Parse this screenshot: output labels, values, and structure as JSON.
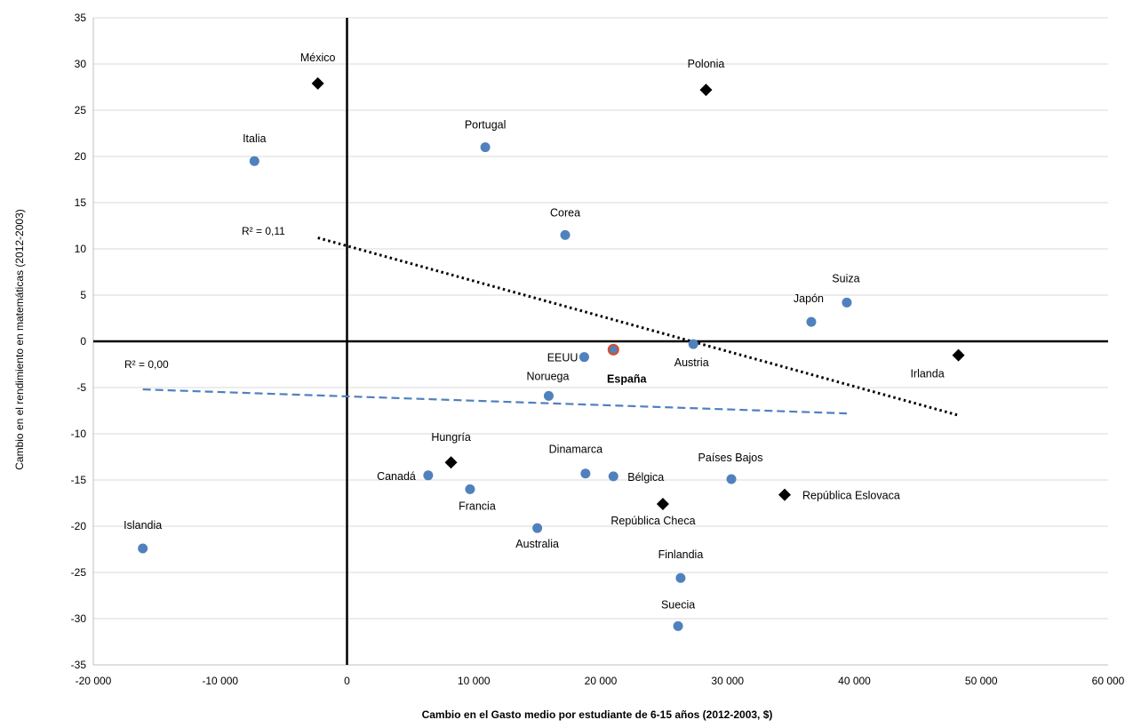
{
  "chart_data": {
    "type": "scatter",
    "xlabel": "Cambio en el Gasto medio por estudiante de 6-15 años (2012-2003, $)",
    "ylabel": "Cambio en el rendimiento en matemáticas (2012-2003)",
    "xlim": [
      -20000,
      60000
    ],
    "ylim": [
      -35,
      35
    ],
    "x_ticks": [
      "-20 000",
      "-10 000",
      "0",
      "10 000",
      "20 000",
      "30 000",
      "40 000",
      "50 000",
      "60 000"
    ],
    "y_ticks": [
      "35",
      "30",
      "25",
      "20",
      "15",
      "10",
      "5",
      "0",
      "-5",
      "-10",
      "-15",
      "-20",
      "-25",
      "-30",
      "-35"
    ],
    "grid": "horizontal",
    "colors": {
      "circle": "#4f81bd",
      "diamond": "#000000",
      "highlight": "#e04a1f",
      "dashed": "#4f81bd",
      "dotted": "#000000",
      "grid": "#d9d9d9"
    },
    "series": [
      {
        "marker": "circle",
        "points": [
          {
            "label": "Italia",
            "x": -7300,
            "y": 19.5
          },
          {
            "label": "Portugal",
            "x": 10900,
            "y": 21
          },
          {
            "label": "Corea",
            "x": 17200,
            "y": 11.5
          },
          {
            "label": "Suiza",
            "x": 39400,
            "y": 4.2
          },
          {
            "label": "Japón",
            "x": 36600,
            "y": 2.1
          },
          {
            "label": "Austria",
            "x": 27300,
            "y": -0.3
          },
          {
            "label": "EEUU",
            "x": 18700,
            "y": -1.7
          },
          {
            "label": "Noruega",
            "x": 15900,
            "y": -5.9
          },
          {
            "label": "Canadá",
            "x": 6400,
            "y": -14.5
          },
          {
            "label": "Francia",
            "x": 9700,
            "y": -16
          },
          {
            "label": "Dinamarca",
            "x": 18800,
            "y": -14.3
          },
          {
            "label": "Bélgica",
            "x": 21000,
            "y": -14.6
          },
          {
            "label": "Países Bajos",
            "x": 30300,
            "y": -14.9
          },
          {
            "label": "Australia",
            "x": 15000,
            "y": -20.2
          },
          {
            "label": "Islandia",
            "x": -16100,
            "y": -22.4
          },
          {
            "label": "Finlandia",
            "x": 26300,
            "y": -25.6
          },
          {
            "label": "Suecia",
            "x": 26100,
            "y": -30.8
          }
        ]
      },
      {
        "marker": "diamond",
        "points": [
          {
            "label": "México",
            "x": -2300,
            "y": 27.9
          },
          {
            "label": "Polonia",
            "x": 28300,
            "y": 27.2
          },
          {
            "label": "Irlanda",
            "x": 48200,
            "y": -1.5
          },
          {
            "label": "Hungría",
            "x": 8200,
            "y": -13.1
          },
          {
            "label": "República Checa",
            "x": 24900,
            "y": -17.6
          },
          {
            "label": "República Eslovaca",
            "x": 34500,
            "y": -16.6
          }
        ]
      },
      {
        "marker": "highlight",
        "points": [
          {
            "label": "España",
            "x": 21000,
            "y": -0.9
          }
        ]
      }
    ],
    "trendlines": [
      {
        "style": "dotted",
        "label": "R² = 0,11",
        "x": [
          -2300,
          48200
        ],
        "y": [
          11.2,
          -8
        ]
      },
      {
        "style": "dashed",
        "label": "R² = 0,00",
        "x": [
          -16100,
          39400
        ],
        "y": [
          -5.2,
          -7.8
        ]
      }
    ]
  }
}
